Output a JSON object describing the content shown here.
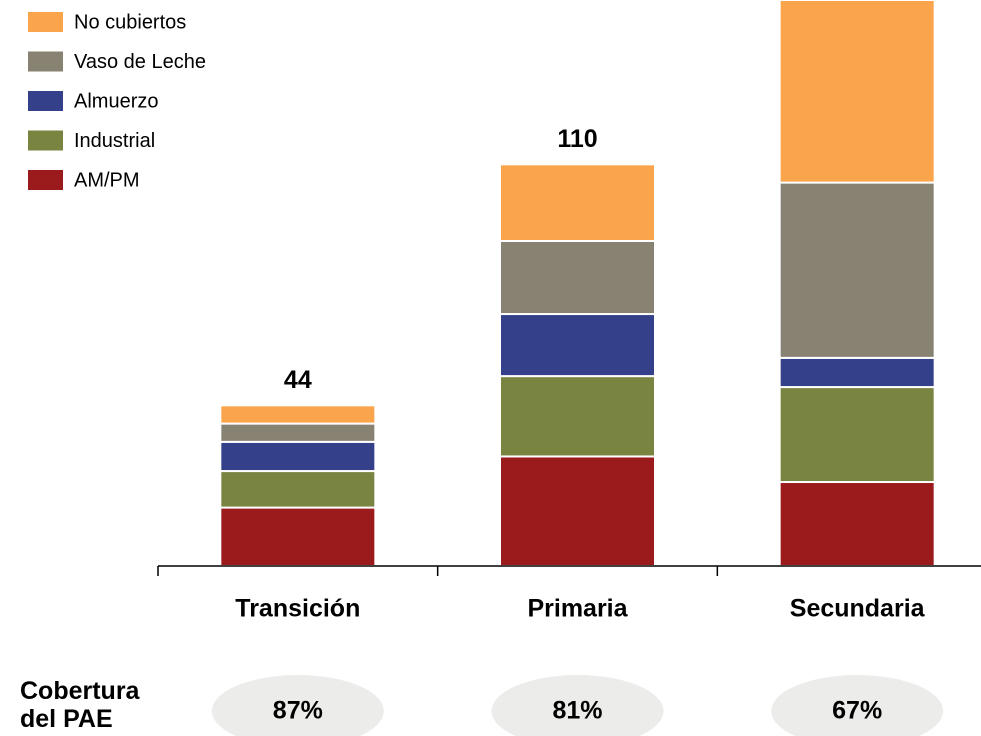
{
  "chart_data": {
    "type": "stacked_bar",
    "categories": [
      "Transición",
      "Primaria",
      "Secundaria"
    ],
    "series": [
      {
        "name": "AM/PM",
        "color": "#9b1a1c",
        "values": [
          16,
          30,
          23
        ]
      },
      {
        "name": "Industrial",
        "color": "#7a8441",
        "values": [
          10,
          22,
          26
        ]
      },
      {
        "name": "Almuerzo",
        "color": "#35408a",
        "values": [
          8,
          17,
          8
        ]
      },
      {
        "name": "Vaso de Leche",
        "color": "#878272",
        "values": [
          5,
          20,
          48
        ]
      },
      {
        "name": "No cubiertos",
        "color": "#faa44b",
        "values": [
          5,
          21,
          50
        ]
      }
    ],
    "totals": [
      44,
      110,
      null
    ],
    "ylim": [
      0,
      155
    ],
    "legend": "top-left",
    "coverage": {
      "label": "Cobertura del PAE",
      "values": [
        87,
        81,
        67
      ],
      "value_labels": [
        "87%",
        "81%",
        "67%"
      ]
    }
  }
}
